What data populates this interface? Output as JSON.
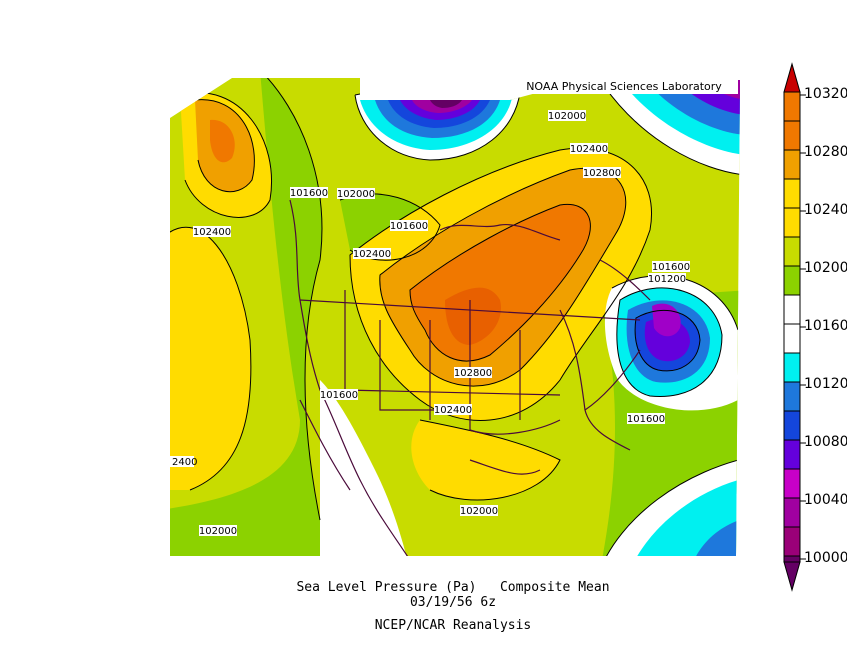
{
  "credit": "NOAA Physical Sciences Laboratory",
  "caption": {
    "line1": "Sea Level Pressure (Pa)   Composite Mean",
    "line2": "03/19/56 6z",
    "line3": "NCEP/NCAR Reanalysis"
  },
  "colorbar": {
    "labels": [
      "10320",
      "10280",
      "10240",
      "10200",
      "10160",
      "10120",
      "10080",
      "10040",
      "10000"
    ],
    "colors": [
      "#c80000",
      "#f07800",
      "#f0a000",
      "#ffdc00",
      "#c8dc00",
      "#8cd200",
      "#ffffff",
      "#00f0f0",
      "#1e78dc",
      "#1446dc",
      "#6400dc",
      "#c800c8",
      "#a000a0",
      "#640064"
    ]
  },
  "contour_labels": [
    "102000",
    "102400",
    "102800",
    "101600",
    "102000",
    "101600",
    "102400",
    "102400",
    "101600",
    "101200",
    "102800",
    "102400",
    "101600",
    "101600",
    "2400",
    "102000",
    "102000"
  ]
}
